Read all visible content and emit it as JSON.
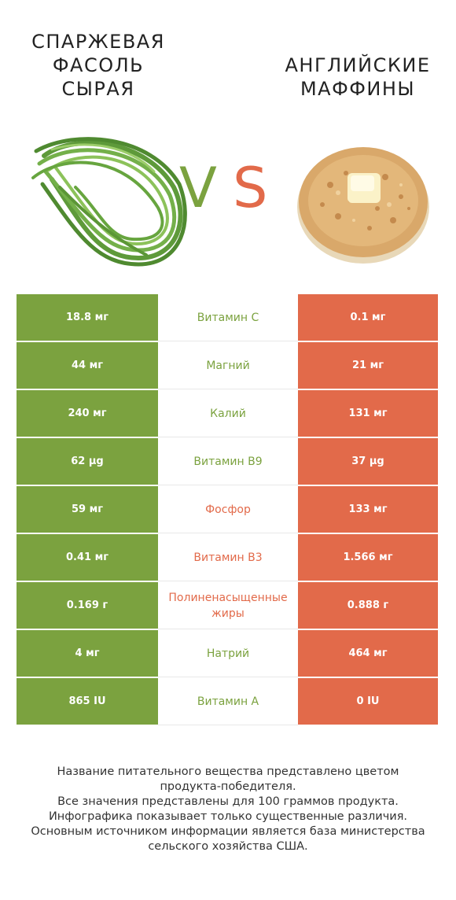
{
  "header": {
    "left_title": "СПАРЖЕВАЯ\nФАСОЛЬ\nСЫРАЯ",
    "right_title": "АНГЛИЙСКИЕ\nМАФФИНЫ",
    "vs_v": "V",
    "vs_s": "S"
  },
  "colors": {
    "left": "#7ba23f",
    "right": "#e26a4a"
  },
  "rows": [
    {
      "left": "18.8 мг",
      "nutrient": "Витамин C",
      "right": "0.1 мг",
      "winner": "left"
    },
    {
      "left": "44 мг",
      "nutrient": "Магний",
      "right": "21 мг",
      "winner": "left"
    },
    {
      "left": "240 мг",
      "nutrient": "Калий",
      "right": "131 мг",
      "winner": "left"
    },
    {
      "left": "62 µg",
      "nutrient": "Витамин B9",
      "right": "37 µg",
      "winner": "left"
    },
    {
      "left": "59 мг",
      "nutrient": "Фосфор",
      "right": "133 мг",
      "winner": "right"
    },
    {
      "left": "0.41 мг",
      "nutrient": "Витамин B3",
      "right": "1.566 мг",
      "winner": "right"
    },
    {
      "left": "0.169 г",
      "nutrient": "Полиненасыщенные жиры",
      "right": "0.888 г",
      "winner": "right"
    },
    {
      "left": "4 мг",
      "nutrient": "Натрий",
      "right": "464 мг",
      "winner": "left"
    },
    {
      "left": "865 IU",
      "nutrient": "Витамин A",
      "right": "0 IU",
      "winner": "left"
    }
  ],
  "footer": {
    "line1": "Название питательного вещества представлено цветом",
    "line2": "продукта-победителя.",
    "line3": "Все значения представлены для 100 граммов продукта.",
    "line4": "Инфографика показывает только существенные различия.",
    "line5": "Основным источником информации является база министерства",
    "line6": "сельского хозяйства США."
  }
}
